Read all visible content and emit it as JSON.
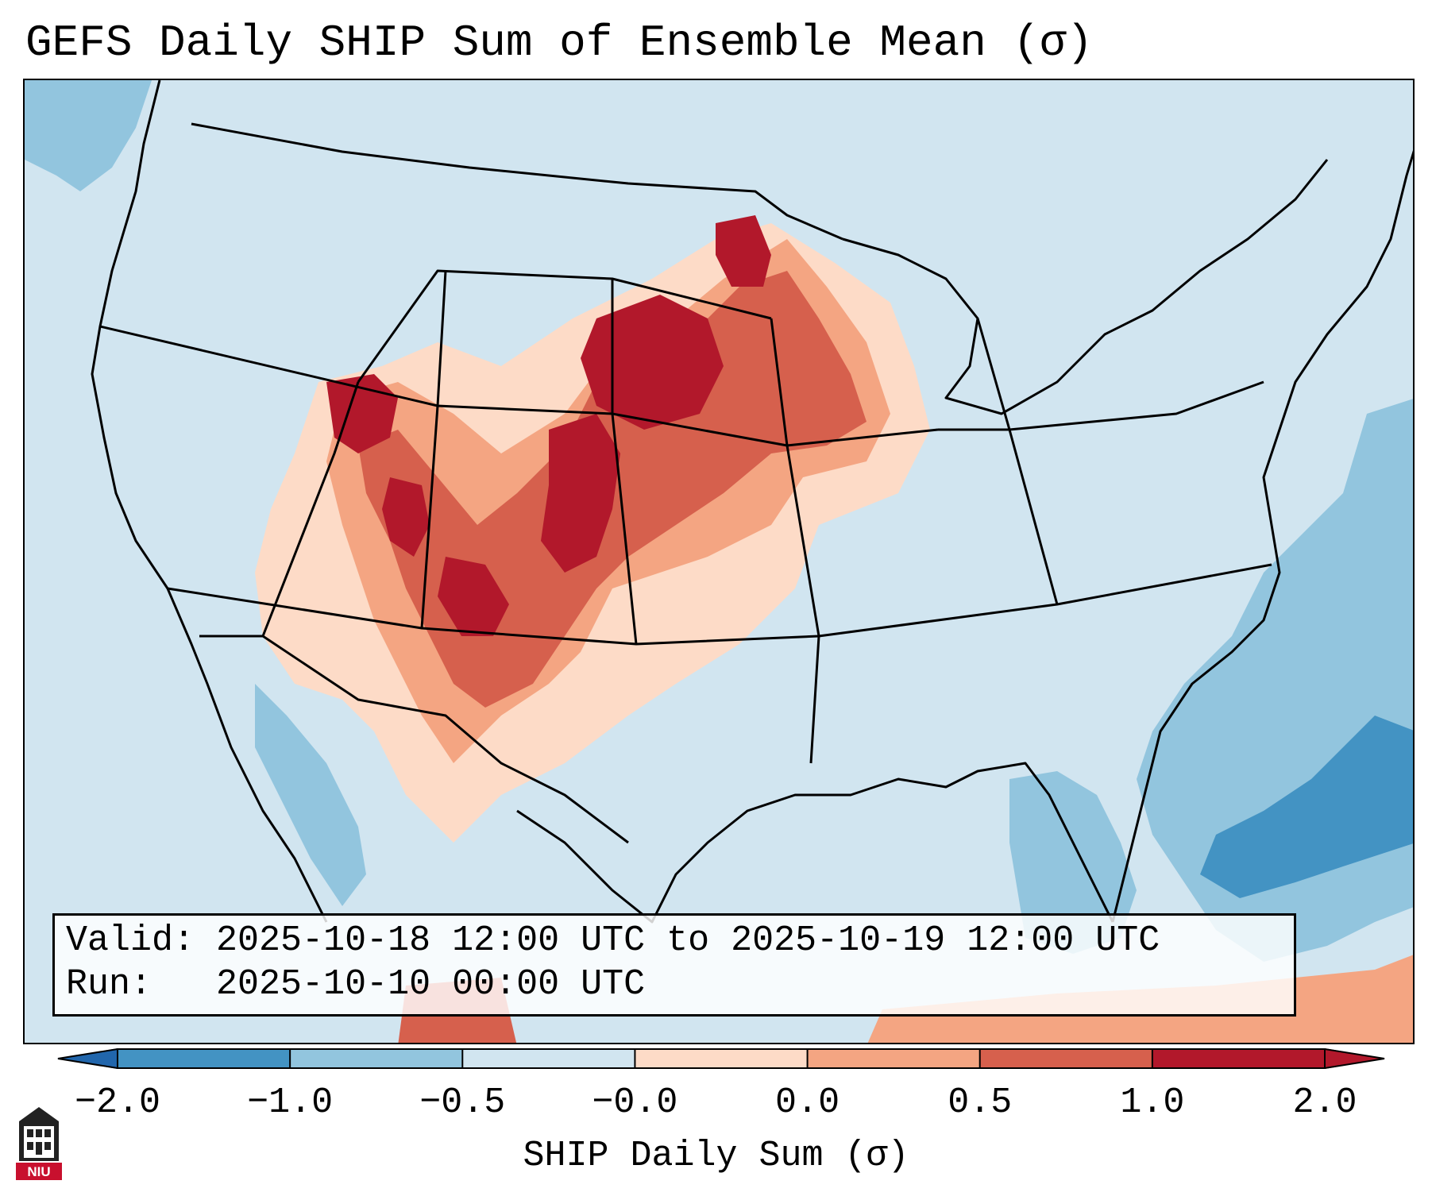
{
  "title": "GEFS Daily SHIP Sum of Ensemble Mean (σ)",
  "info": {
    "valid_label": "Valid:",
    "valid_value": "2025-10-18 12:00 UTC to 2025-10-19 12:00 UTC",
    "run_label": "Run:",
    "run_value": "2025-10-10 00:00 UTC"
  },
  "colorbar": {
    "label": "SHIP Daily Sum (σ)",
    "ticks": [
      "−2.0",
      "−1.0",
      "−0.5",
      "−0.0",
      "0.0",
      "0.5",
      "1.0",
      "2.0"
    ],
    "colors": [
      "#4393c3",
      "#92c5de",
      "#d1e5f0",
      "#fddbc7",
      "#f4a582",
      "#d6604d",
      "#b2182b"
    ],
    "under_color": "#2166ac",
    "over_color": "#b2182b"
  },
  "logo": {
    "text": "NIU"
  },
  "map": {
    "colors": {
      "background": "#d1e5f0",
      "light_red": "#fddbc7",
      "mid_red": "#f4a582",
      "red": "#d6604d",
      "dark_red": "#b2182b",
      "light_blue": "#92c5de",
      "mid_blue": "#4393c3"
    }
  }
}
